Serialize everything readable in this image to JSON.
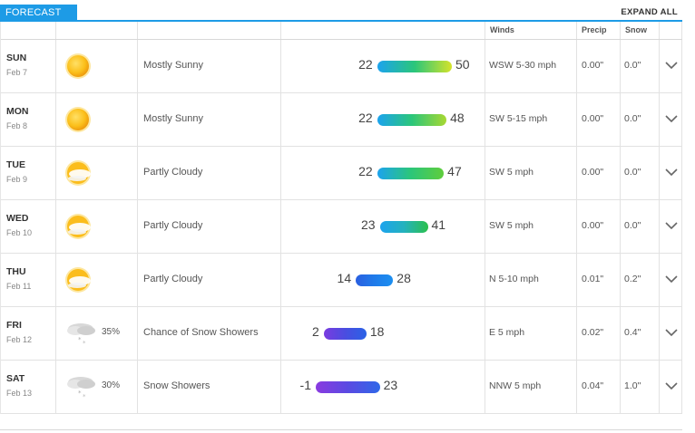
{
  "tab_label": "FORECAST",
  "expand_label": "EXPAND ALL",
  "headers": {
    "winds": "Winds",
    "precip": "Precip",
    "snow": "Snow"
  },
  "temp_scale": {
    "min": -1,
    "max": 50
  },
  "days": [
    {
      "day": "SUN",
      "date": "Feb 7",
      "icon": "sun-icon",
      "pop": "",
      "condition": "Mostly Sunny",
      "low": 22,
      "high": 50,
      "bar_colors": [
        "#1ca3ee",
        "#2bc67a",
        "#d5e32a"
      ],
      "winds": "WSW 5-30 mph",
      "precip": "0.00\"",
      "snow": "0.0\""
    },
    {
      "day": "MON",
      "date": "Feb 8",
      "icon": "sun-icon",
      "pop": "",
      "condition": "Mostly Sunny",
      "low": 22,
      "high": 48,
      "bar_colors": [
        "#1ca3ee",
        "#2bc67a",
        "#a8d832"
      ],
      "winds": "SW 5-15 mph",
      "precip": "0.00\"",
      "snow": "0.0\""
    },
    {
      "day": "TUE",
      "date": "Feb 9",
      "icon": "partly-cloudy-icon",
      "pop": "",
      "condition": "Partly Cloudy",
      "low": 22,
      "high": 47,
      "bar_colors": [
        "#1ca3ee",
        "#2bc67a",
        "#5fcd3c"
      ],
      "winds": "SW 5 mph",
      "precip": "0.00\"",
      "snow": "0.0\""
    },
    {
      "day": "WED",
      "date": "Feb 10",
      "icon": "partly-cloudy-icon",
      "pop": "",
      "condition": "Partly Cloudy",
      "low": 23,
      "high": 41,
      "bar_colors": [
        "#1ca3ee",
        "#24b2bd",
        "#2bc04c"
      ],
      "winds": "SW 5 mph",
      "precip": "0.00\"",
      "snow": "0.0\""
    },
    {
      "day": "THU",
      "date": "Feb 11",
      "icon": "partly-cloudy-icon",
      "pop": "",
      "condition": "Partly Cloudy",
      "low": 14,
      "high": 28,
      "bar_colors": [
        "#2a5fe0",
        "#1f7bea",
        "#1c8ff0"
      ],
      "winds": "N 5-10 mph",
      "precip": "0.01\"",
      "snow": "0.2\""
    },
    {
      "day": "FRI",
      "date": "Feb 12",
      "icon": "snow-showers-icon",
      "pop": "35%",
      "condition": "Chance of Snow Showers",
      "low": 2,
      "high": 18,
      "bar_colors": [
        "#7a3be0",
        "#4a4de0",
        "#2a62e6"
      ],
      "winds": "E 5 mph",
      "precip": "0.02\"",
      "snow": "0.4\""
    },
    {
      "day": "SAT",
      "date": "Feb 13",
      "icon": "snow-showers-icon",
      "pop": "30%",
      "condition": "Snow Showers",
      "low": -1,
      "high": 23,
      "bar_colors": [
        "#8a3be0",
        "#5a4ae2",
        "#2f68e8"
      ],
      "winds": "NNW 5 mph",
      "precip": "0.04\"",
      "snow": "1.0\""
    }
  ]
}
